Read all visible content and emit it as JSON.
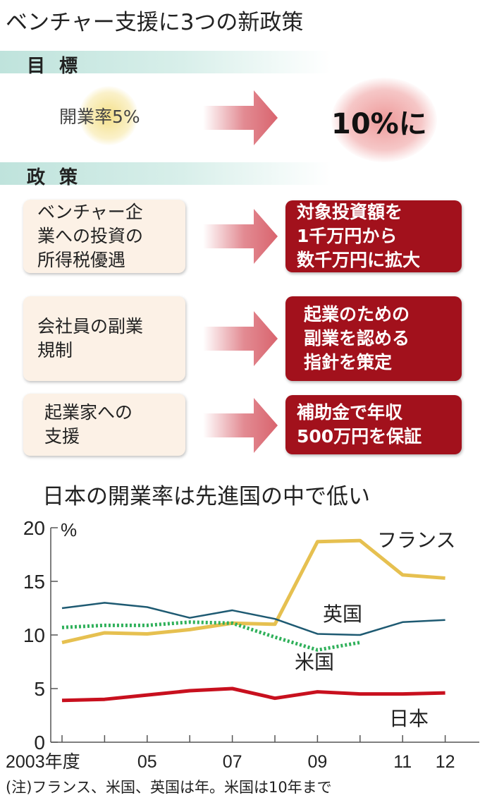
{
  "title": "ベンチャー支援に3つの新政策",
  "goal": {
    "header": "目標",
    "current": "開業率5%",
    "target": "10%に",
    "colors": {
      "current_glow": "#f3dc7a",
      "target_glow": "#ec8f8f",
      "arrow": "#d9646e"
    }
  },
  "policy": {
    "header": "政策",
    "items": [
      {
        "issue": [
          "ベンチャー企",
          "業への投資の",
          "所得税優遇"
        ],
        "measure": [
          "対象投資額を",
          "1千万円から",
          "数千万円に拡大"
        ]
      },
      {
        "issue": [
          "会社員の副業",
          "規制"
        ],
        "measure": [
          "起業のための",
          "副業を認める",
          "指針を策定"
        ]
      },
      {
        "issue": [
          "起業家への",
          "支援"
        ],
        "measure": [
          "補助金で年収",
          "500万円を保証"
        ]
      }
    ],
    "colors": {
      "issue_bg": "#fcf1e6",
      "measure_bg": "#a2111c"
    }
  },
  "chart_data": {
    "type": "line",
    "title": "日本の開業率は先進国の中で低い",
    "ylabel": "%",
    "x": [
      2003,
      2004,
      2005,
      2006,
      2007,
      2008,
      2009,
      2010,
      2011,
      2012
    ],
    "x_tick_labels": [
      {
        "year": 2003,
        "label": "2003年度"
      },
      {
        "year": 2005,
        "label": "05"
      },
      {
        "year": 2007,
        "label": "07"
      },
      {
        "year": 2009,
        "label": "09"
      },
      {
        "year": 2011,
        "label": "11"
      },
      {
        "year": 2012,
        "label": "12"
      }
    ],
    "y_ticks": [
      0,
      5,
      10,
      15,
      20
    ],
    "ylim": [
      0,
      20
    ],
    "xlim": [
      2002.85,
      2013.4
    ],
    "grid": false,
    "series": [
      {
        "name": "フランス",
        "color": "#e6c050",
        "style": "solid-thick",
        "values": [
          9.3,
          10.2,
          10.1,
          10.5,
          11.1,
          11.0,
          18.7,
          18.8,
          15.6,
          15.3
        ]
      },
      {
        "name": "英国",
        "color": "#1e5a72",
        "style": "solid-thin",
        "values": [
          12.5,
          13.0,
          12.6,
          11.6,
          12.3,
          11.5,
          10.1,
          10.0,
          11.2,
          11.4
        ]
      },
      {
        "name": "米国",
        "color": "#2fb05a",
        "style": "dotted",
        "values": [
          10.7,
          10.9,
          10.9,
          11.2,
          11.1,
          9.8,
          8.6,
          9.3,
          null,
          null
        ]
      },
      {
        "name": "日本",
        "color": "#c8101e",
        "style": "solid-thick",
        "values": [
          3.9,
          4.0,
          4.4,
          4.8,
          5.0,
          4.1,
          4.7,
          4.5,
          4.5,
          4.6
        ]
      }
    ],
    "note": "(注)フランス、米国、英国は年。米国は10年まで"
  }
}
